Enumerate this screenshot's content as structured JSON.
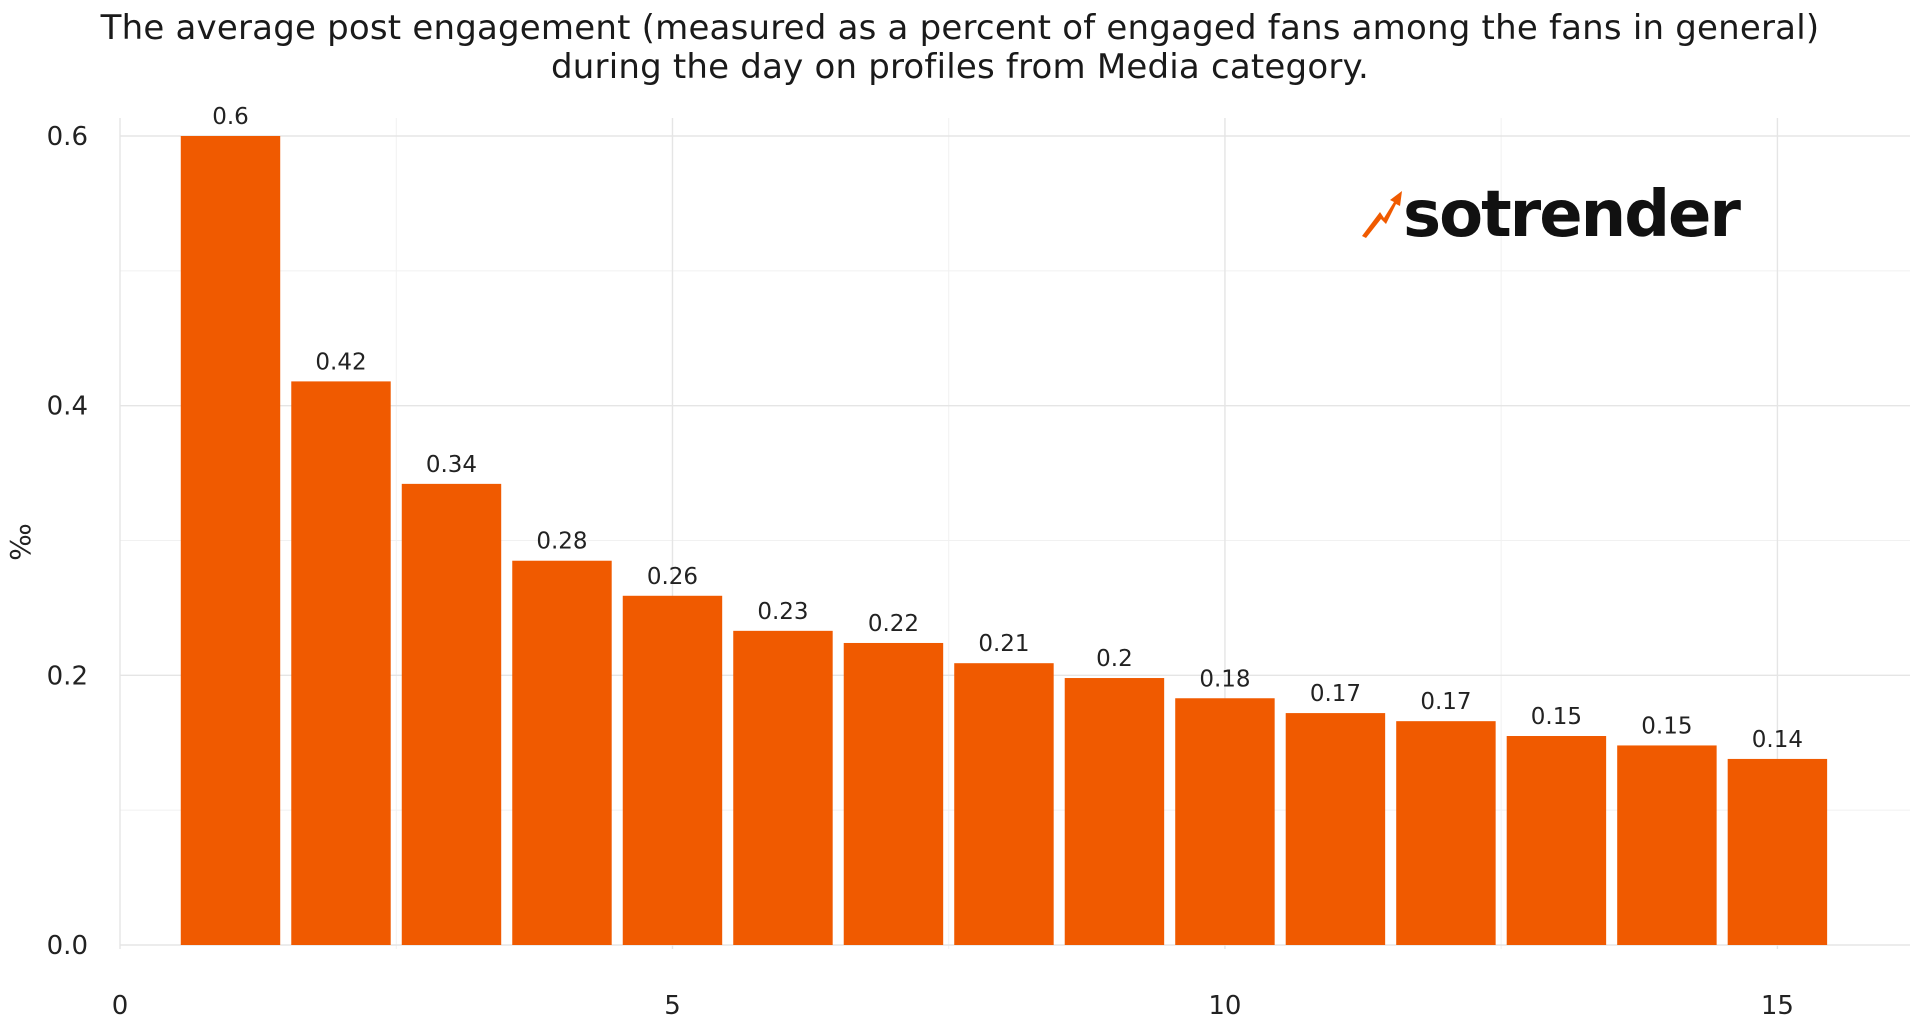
{
  "chart_data": {
    "type": "bar",
    "title_lines": [
      "The average post engagement (measured as a percent of engaged fans among the fans in general)",
      "during the day on profiles from Media category."
    ],
    "xlabel": "",
    "ylabel": "‰",
    "x": [
      1,
      2,
      3,
      4,
      5,
      6,
      7,
      8,
      9,
      10,
      11,
      12,
      13,
      14,
      15
    ],
    "values": [
      0.6,
      0.418,
      0.342,
      0.285,
      0.259,
      0.233,
      0.224,
      0.209,
      0.198,
      0.183,
      0.172,
      0.166,
      0.155,
      0.148,
      0.138
    ],
    "data_labels": [
      "0.6",
      "0.42",
      "0.34",
      "0.28",
      "0.26",
      "0.23",
      "0.22",
      "0.21",
      "0.2",
      "0.18",
      "0.17",
      "0.17",
      "0.15",
      "0.15",
      "0.14"
    ],
    "x_ticks": [
      0,
      5,
      10,
      15
    ],
    "x_tick_labels": [
      "0",
      "5",
      "10",
      "15"
    ],
    "y_ticks": [
      0,
      0.2,
      0.4,
      0.6
    ],
    "y_tick_labels": [
      "0.0",
      "0.2",
      "0.4",
      "0.6"
    ],
    "xlim": [
      0,
      16.2
    ],
    "ylim": [
      0,
      0.6
    ],
    "grid": true,
    "bar_color": "#F05A00",
    "grid_color": "#e5e5e5",
    "logo": {
      "text": "sotrender",
      "icon": "trend-arrow-icon",
      "accent_color": "#F05A00"
    }
  }
}
